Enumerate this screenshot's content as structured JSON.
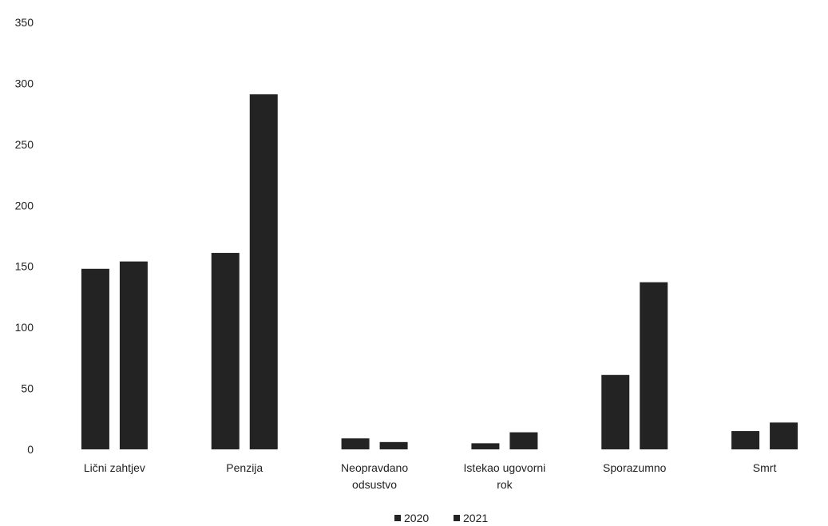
{
  "chart_data": {
    "type": "bar",
    "categories": [
      "Lični zahtjev",
      "Penzija",
      "Neopravdano odsustvo",
      "Istekao ugovorni rok",
      "Sporazumno",
      "Smrt"
    ],
    "category_lines": [
      [
        "Lični zahtjev"
      ],
      [
        "Penzija"
      ],
      [
        "Neopravdano",
        "odsustvo"
      ],
      [
        "Istekao ugovorni",
        "rok"
      ],
      [
        "Sporazumno"
      ],
      [
        "Smrt"
      ]
    ],
    "series": [
      {
        "name": "2020",
        "values": [
          148,
          161,
          9,
          5,
          61,
          15
        ],
        "color": "#232323"
      },
      {
        "name": "2021",
        "values": [
          154,
          291,
          6,
          14,
          137,
          22
        ],
        "color": "#232323"
      }
    ],
    "ylim": [
      0,
      350
    ],
    "yticks": [
      0,
      50,
      100,
      150,
      200,
      250,
      300,
      350
    ],
    "grid": false,
    "legend": "bottom-center"
  }
}
